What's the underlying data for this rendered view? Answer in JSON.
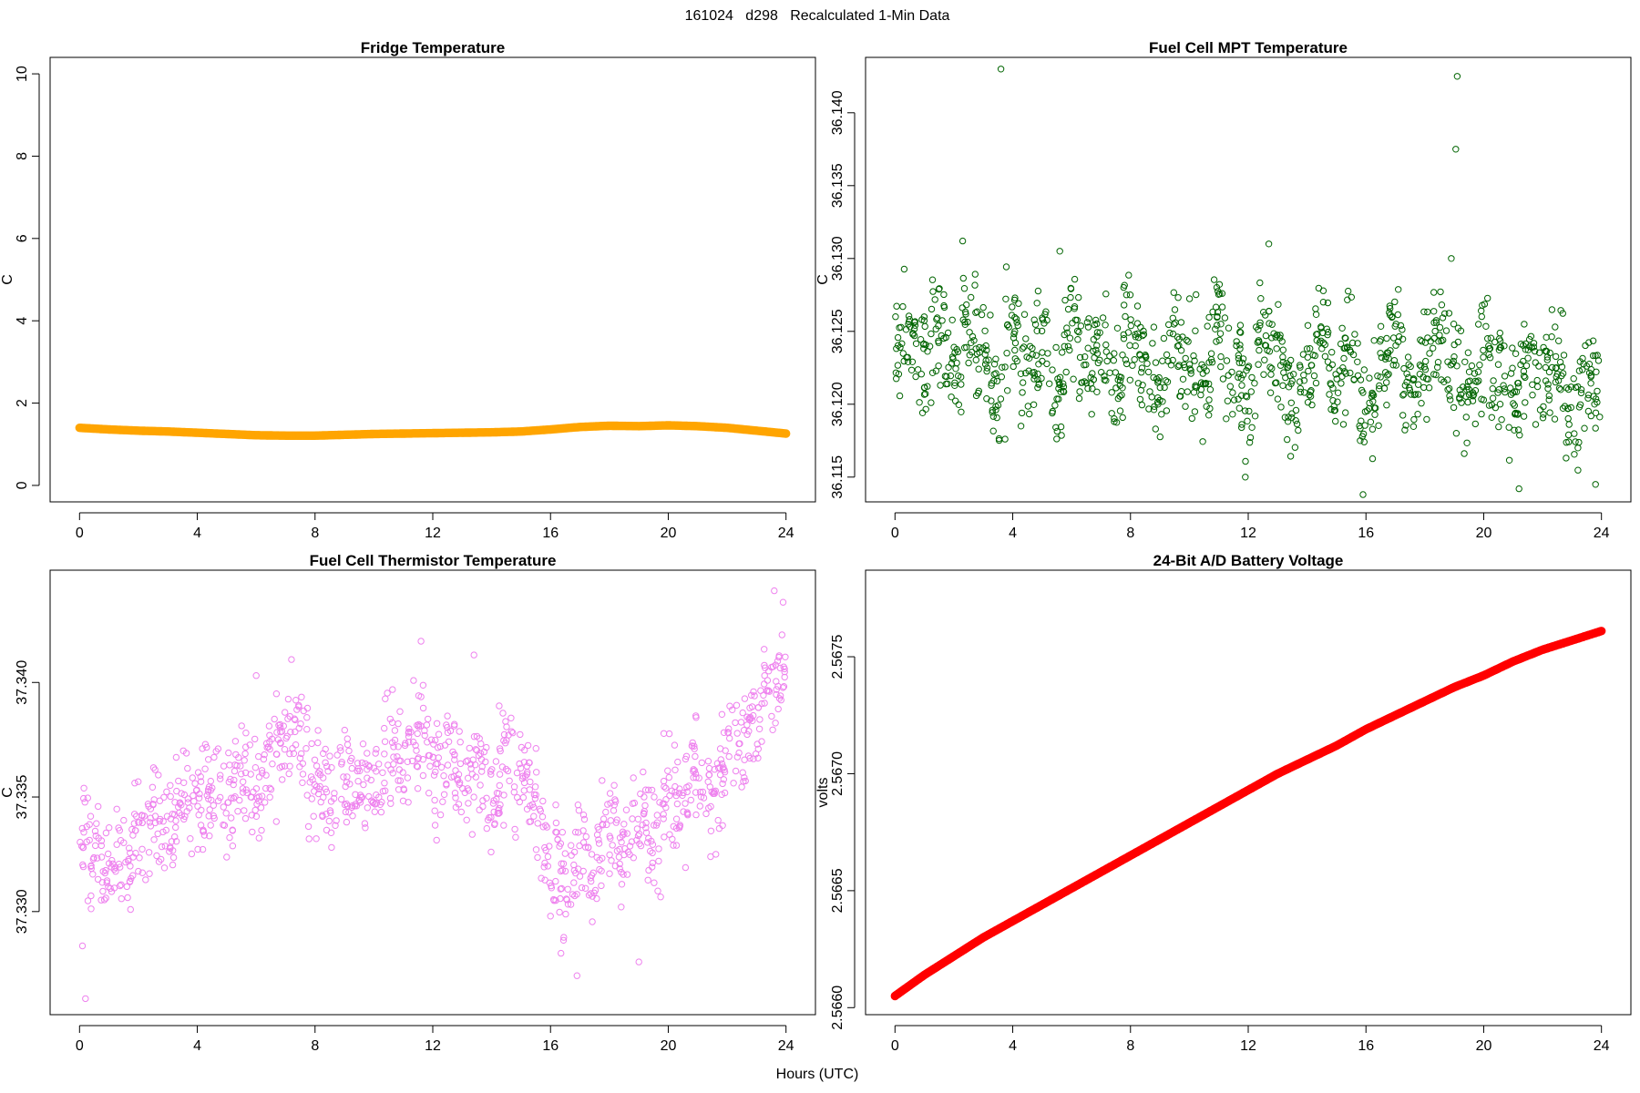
{
  "figure": {
    "title": "161024   d298   Recalculated 1-Min Data",
    "xlabel": "Hours (UTC)"
  },
  "chart_data": [
    {
      "type": "scatter",
      "title": "Fridge Temperature",
      "xlabel": "Hours (UTC)",
      "ylabel": "C",
      "xlim": [
        -1,
        25
      ],
      "ylim": [
        -0.4,
        10.4
      ],
      "xticks": [
        "0",
        "4",
        "8",
        "12",
        "16",
        "20",
        "24"
      ],
      "yticks": [
        "0",
        "2",
        "4",
        "6",
        "8",
        "10"
      ],
      "color": "#FFA500",
      "marker": "filled",
      "series": [
        {
          "x": [
            0.0,
            1.0,
            2.0,
            3.0,
            4.0,
            5.0,
            6.0,
            7.0,
            8.0,
            9.0,
            10.0,
            11.0,
            12.0,
            13.0,
            14.0,
            15.0,
            16.0,
            17.0,
            18.0,
            19.0,
            20.0,
            21.0,
            22.0,
            23.0,
            24.0
          ],
          "y": [
            1.4,
            1.36,
            1.33,
            1.31,
            1.28,
            1.25,
            1.22,
            1.21,
            1.21,
            1.23,
            1.25,
            1.26,
            1.27,
            1.28,
            1.29,
            1.31,
            1.36,
            1.42,
            1.45,
            1.44,
            1.46,
            1.44,
            1.4,
            1.33,
            1.26
          ]
        }
      ]
    },
    {
      "type": "scatter",
      "title": "Fuel Cell MPT Temperature",
      "xlabel": "Hours (UTC)",
      "ylabel": "C",
      "xlim": [
        -1,
        25
      ],
      "ylim": [
        36.1133,
        36.1438
      ],
      "xticks": [
        "0",
        "4",
        "8",
        "12",
        "16",
        "20",
        "24"
      ],
      "yticks": [
        "36.115",
        "36.120",
        "36.125",
        "36.130",
        "36.135",
        "36.140"
      ],
      "color": "#006400",
      "marker": "open",
      "series": [
        {
          "x": [
            0.0,
            0.5,
            1.0,
            1.5,
            2.0,
            2.5,
            3.0,
            3.5,
            4.0,
            4.5,
            5.0,
            5.5,
            6.0,
            6.5,
            7.0,
            7.5,
            8.0,
            8.5,
            9.0,
            9.5,
            10.0,
            10.5,
            11.0,
            11.5,
            12.0,
            12.5,
            13.0,
            13.5,
            14.0,
            14.5,
            15.0,
            15.5,
            16.0,
            16.5,
            17.0,
            17.5,
            18.0,
            18.5,
            19.0,
            19.5,
            20.0,
            20.5,
            21.0,
            21.5,
            22.0,
            22.5,
            23.0,
            23.5,
            24.0,
            3.6,
            19.1,
            19.05,
            5.6,
            12.7,
            18.9,
            11.9,
            15.9,
            21.2,
            23.8
          ],
          "y": [
            36.1235,
            36.1245,
            36.1228,
            36.1252,
            36.1218,
            36.1262,
            36.123,
            36.121,
            36.1248,
            36.1225,
            36.124,
            36.1205,
            36.1255,
            36.1222,
            36.1238,
            36.1215,
            36.125,
            36.1228,
            36.1208,
            36.1242,
            36.1232,
            36.1218,
            36.1255,
            36.1225,
            36.121,
            36.1245,
            36.1235,
            36.12,
            36.1228,
            36.125,
            36.1215,
            36.1238,
            36.1205,
            36.1222,
            36.1242,
            36.1212,
            36.123,
            36.1248,
            36.1225,
            36.1208,
            36.1238,
            36.1218,
            36.1202,
            36.1232,
            36.1215,
            36.1228,
            36.12,
            36.1222,
            36.121,
            36.143,
            36.1425,
            36.1375,
            36.1305,
            36.131,
            36.13,
            36.115,
            36.1138,
            36.1142,
            36.1145
          ]
        }
      ]
    },
    {
      "type": "scatter",
      "title": "Fuel Cell Thermistor Temperature",
      "xlabel": "Hours (UTC)",
      "ylabel": "C",
      "xlim": [
        -1,
        25
      ],
      "ylim": [
        37.3255,
        37.3449
      ],
      "xticks": [
        "0",
        "4",
        "8",
        "12",
        "16",
        "20",
        "24"
      ],
      "yticks": [
        "37.330",
        "37.335",
        "37.340"
      ],
      "color": "#EE82EE",
      "marker": "open",
      "series": [
        {
          "x": [
            0.0,
            0.5,
            1.0,
            1.5,
            2.0,
            2.5,
            3.0,
            3.5,
            4.0,
            4.5,
            5.0,
            5.5,
            6.0,
            6.5,
            7.0,
            7.5,
            8.0,
            8.5,
            9.0,
            9.5,
            10.0,
            10.5,
            11.0,
            11.5,
            12.0,
            12.5,
            13.0,
            13.5,
            14.0,
            14.5,
            15.0,
            15.5,
            16.0,
            16.5,
            17.0,
            17.5,
            18.0,
            18.5,
            19.0,
            19.5,
            20.0,
            20.5,
            21.0,
            21.5,
            22.0,
            22.5,
            23.0,
            23.5,
            24.0,
            0.1,
            0.2,
            6.0,
            7.2,
            11.6,
            13.4,
            16.0,
            16.9,
            19.0,
            23.6,
            23.9
          ],
          "y": [
            37.3325,
            37.333,
            37.3318,
            37.3322,
            37.333,
            37.3345,
            37.3338,
            37.335,
            37.3342,
            37.3355,
            37.3348,
            37.336,
            37.3352,
            37.3365,
            37.3372,
            37.338,
            37.3355,
            37.3348,
            37.3362,
            37.335,
            37.3358,
            37.3372,
            37.3365,
            37.3378,
            37.336,
            37.3368,
            37.3355,
            37.3362,
            37.3348,
            37.337,
            37.3358,
            37.3345,
            37.3322,
            37.331,
            37.3328,
            37.3315,
            37.334,
            37.3325,
            37.3342,
            37.333,
            37.3352,
            37.3345,
            37.336,
            37.335,
            37.3368,
            37.3375,
            37.3385,
            37.3395,
            37.3405,
            37.3285,
            37.3262,
            37.3403,
            37.341,
            37.3418,
            37.3412,
            37.3298,
            37.3272,
            37.3278,
            37.344,
            37.3435
          ]
        }
      ]
    },
    {
      "type": "scatter",
      "title": "24-Bit A/D Battery Voltage",
      "xlabel": "Hours (UTC)",
      "ylabel": "volts",
      "xlim": [
        -1,
        25
      ],
      "ylim": [
        2.56597,
        2.56787
      ],
      "xticks": [
        "0",
        "4",
        "8",
        "12",
        "16",
        "20",
        "24"
      ],
      "yticks": [
        "2.5660",
        "2.5665",
        "2.5670",
        "2.5675"
      ],
      "color": "#FF0000",
      "marker": "filled",
      "series": [
        {
          "x": [
            0.0,
            1.0,
            2.0,
            3.0,
            4.0,
            5.0,
            6.0,
            7.0,
            8.0,
            9.0,
            10.0,
            11.0,
            12.0,
            13.0,
            14.0,
            15.0,
            16.0,
            17.0,
            18.0,
            19.0,
            20.0,
            21.0,
            22.0,
            23.0,
            24.0
          ],
          "y": [
            2.56605,
            2.56614,
            2.56622,
            2.5663,
            2.56637,
            2.56644,
            2.56651,
            2.56658,
            2.56665,
            2.56672,
            2.56679,
            2.56686,
            2.56693,
            2.567,
            2.56706,
            2.56712,
            2.56719,
            2.56725,
            2.56731,
            2.56737,
            2.56742,
            2.56748,
            2.56753,
            2.56757,
            2.56761
          ]
        }
      ]
    }
  ]
}
